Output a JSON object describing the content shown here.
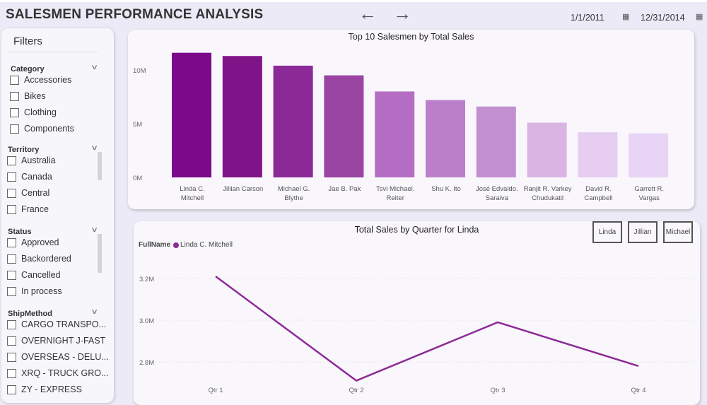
{
  "header": {
    "title": "SALESMEN PERFORMANCE ANALYSIS",
    "back_icon": "arrow-left",
    "forward_icon": "arrow-right",
    "start_date": "1/1/2011",
    "end_date": "12/31/2014"
  },
  "sidebar": {
    "title": "Filters",
    "sections": [
      {
        "label": "Category",
        "items": [
          "Accessories",
          "Bikes",
          "Clothing",
          "Components"
        ]
      },
      {
        "label": "Territory",
        "items": [
          "Australia",
          "Canada",
          "Central",
          "France"
        ]
      },
      {
        "label": "Status",
        "items": [
          "Approved",
          "Backordered",
          "Cancelled",
          "In process"
        ]
      },
      {
        "label": "ShipMethod",
        "items": [
          "CARGO TRANSPO...",
          "OVERNIGHT J-FAST",
          "OVERSEAS - DELU...",
          "XRQ - TRUCK GRO...",
          "ZY - EXPRESS"
        ]
      }
    ]
  },
  "buttons": {
    "linda": "Linda",
    "jillian": "Jillian",
    "michael": "Michael"
  },
  "chart_data": [
    {
      "type": "bar",
      "title": "Top 10 Salesmen by Total Sales",
      "categories": [
        [
          "Linda C.",
          "Mitchell"
        ],
        [
          "Jillian Carson"
        ],
        [
          "Michael G.",
          "Blythe"
        ],
        [
          "Jae B. Pak"
        ],
        [
          "Tsvi Michael.",
          "Reiter"
        ],
        [
          "Shu K. Ito"
        ],
        [
          "José Edvaldo.",
          "Saraiva"
        ],
        [
          "Ranjit R. Varkey",
          "Chudukatil"
        ],
        [
          "David R.",
          "Campbell"
        ],
        [
          "Garrett R.",
          "Vargas"
        ]
      ],
      "values": [
        11.6,
        11.3,
        10.4,
        9.5,
        8.0,
        7.2,
        6.6,
        5.1,
        4.2,
        4.1
      ],
      "unit": "M",
      "yticks": [
        "0M",
        "5M",
        "10M"
      ],
      "ylim": [
        0,
        12
      ],
      "colors": [
        "#7a0a8a",
        "#7f1489",
        "#8b2996",
        "#9a44a4",
        "#b56dc3",
        "#bb7fc9",
        "#c290d0",
        "#dab5e4",
        "#e6cdf1",
        "#e8d5f5"
      ]
    },
    {
      "type": "line",
      "title": "Total Sales by Quarter for Linda",
      "legend_title": "FullName",
      "series": [
        {
          "name": "Linda C. Mitchell",
          "values": [
            3.21,
            2.71,
            2.99,
            2.78
          ],
          "color": "#8b2a94"
        }
      ],
      "categories": [
        "Qtr 1",
        "Qtr 2",
        "Qtr 3",
        "Qtr 4"
      ],
      "yticks": [
        "2.8M",
        "3.0M",
        "3.2M"
      ],
      "ylim": [
        2.7,
        3.3
      ]
    }
  ]
}
